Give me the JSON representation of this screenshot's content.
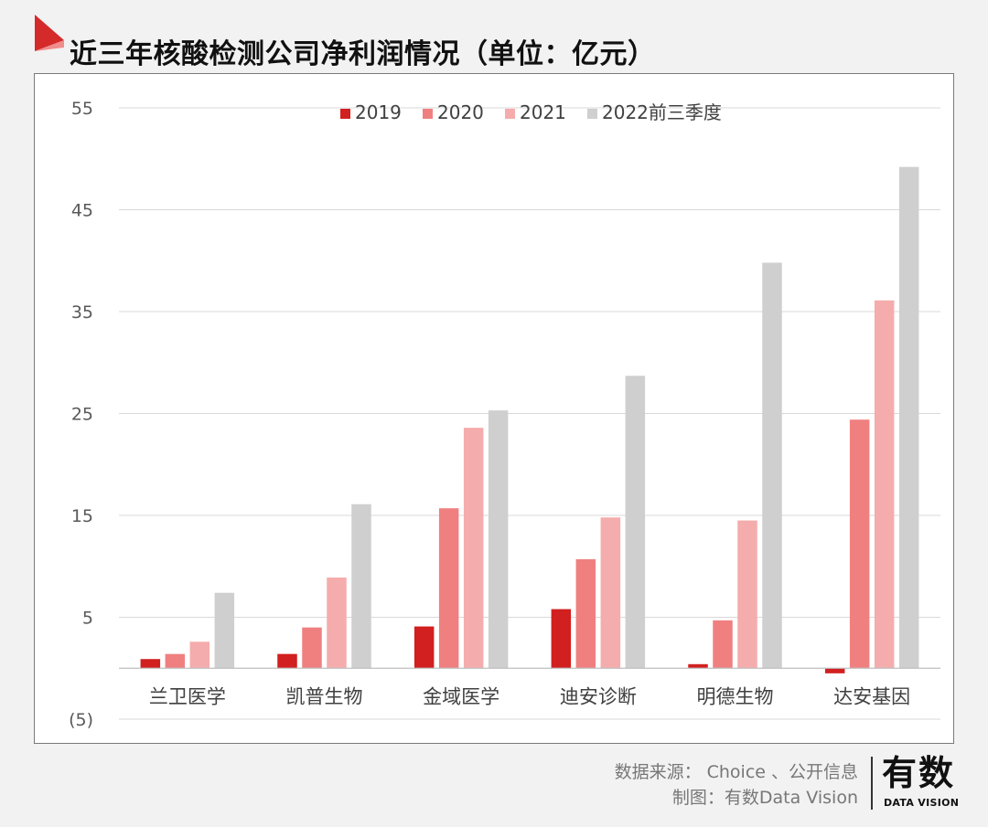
{
  "title": "近三年核酸检测公司净利润情况（单位：亿元）",
  "colors": {
    "brand": "#d42a2a",
    "flag_light": "#f08c8c"
  },
  "chart_data": {
    "type": "bar",
    "title": "近三年核酸检测公司净利润情况（单位：亿元）",
    "categories": [
      "兰卫医学",
      "凯普生物",
      "金域医学",
      "迪安诊断",
      "明德生物",
      "达安基因"
    ],
    "series": [
      {
        "name": "2019",
        "color": "#d21f1f",
        "values": [
          0.9,
          1.4,
          4.1,
          5.8,
          0.4,
          -0.5
        ]
      },
      {
        "name": "2020",
        "color": "#f08080",
        "values": [
          1.4,
          4.0,
          15.7,
          10.7,
          4.7,
          24.4
        ]
      },
      {
        "name": "2021",
        "color": "#f5acac",
        "values": [
          2.6,
          8.9,
          23.6,
          14.8,
          14.5,
          36.1
        ]
      },
      {
        "name": "2022前三季度",
        "color": "#cfcfcf",
        "values": [
          7.4,
          16.1,
          25.3,
          28.7,
          39.8,
          49.2
        ]
      }
    ],
    "yticks": [
      {
        "value": 55,
        "label": "55"
      },
      {
        "value": 45,
        "label": "45"
      },
      {
        "value": 35,
        "label": "35"
      },
      {
        "value": 25,
        "label": "25"
      },
      {
        "value": 15,
        "label": "15"
      },
      {
        "value": 5,
        "label": "5"
      },
      {
        "value": -5,
        "label": "(5)"
      }
    ],
    "ylim": [
      -5,
      55
    ],
    "xlabel": "",
    "ylabel": "",
    "grid": true,
    "legend_position": "top-center"
  },
  "footer": {
    "source": "数据来源： Choice 、公开信息",
    "credit": "制图：有数Data Vision"
  },
  "logo": {
    "cn": "有数",
    "en": "DATA VISION"
  }
}
